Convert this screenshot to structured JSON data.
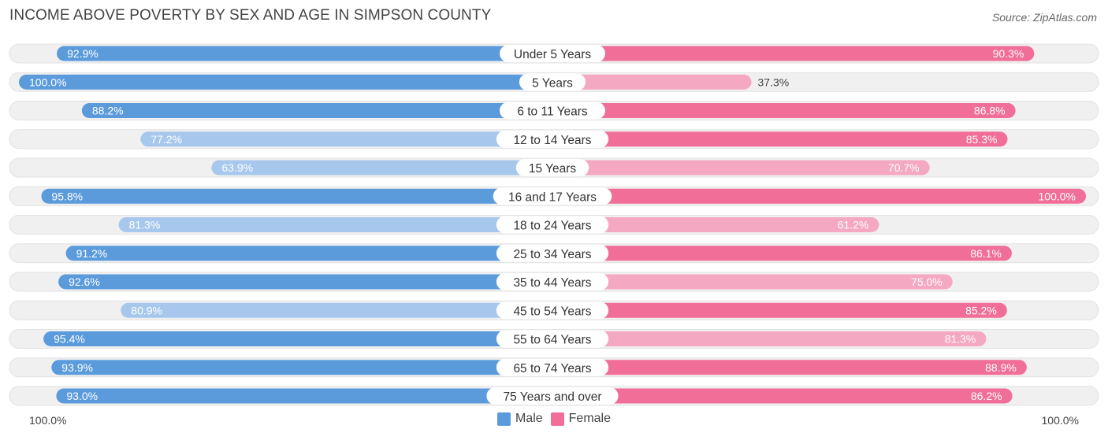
{
  "chart_data": {
    "type": "bar",
    "orientation": "horizontal-diverging",
    "title": "INCOME ABOVE POVERTY BY SEX AND AGE IN SIMPSON COUNTY",
    "source": "Source: ZipAtlas.com",
    "categories": [
      "Under 5 Years",
      "5 Years",
      "6 to 11 Years",
      "12 to 14 Years",
      "15 Years",
      "16 and 17 Years",
      "18 to 24 Years",
      "25 to 34 Years",
      "35 to 44 Years",
      "45 to 54 Years",
      "55 to 64 Years",
      "65 to 74 Years",
      "75 Years and over"
    ],
    "series": [
      {
        "name": "Male",
        "values": [
          92.9,
          100.0,
          88.2,
          77.2,
          63.9,
          95.8,
          81.3,
          91.2,
          92.6,
          80.9,
          95.4,
          93.9,
          93.0
        ],
        "labels": [
          "92.9%",
          "100.0%",
          "88.2%",
          "77.2%",
          "63.9%",
          "95.8%",
          "81.3%",
          "91.2%",
          "92.6%",
          "80.9%",
          "95.4%",
          "93.9%",
          "93.0%"
        ]
      },
      {
        "name": "Female",
        "values": [
          90.3,
          37.3,
          86.8,
          85.3,
          70.7,
          100.0,
          61.2,
          86.1,
          75.0,
          85.2,
          81.3,
          88.9,
          86.2
        ],
        "labels": [
          "90.3%",
          "37.3%",
          "86.8%",
          "85.3%",
          "70.7%",
          "100.0%",
          "61.2%",
          "86.1%",
          "75.0%",
          "85.2%",
          "81.3%",
          "88.9%",
          "86.2%"
        ]
      }
    ],
    "xlim": [
      0,
      100
    ],
    "axis_left_label": "100.0%",
    "axis_right_label": "100.0%",
    "legend_position": "bottom-center",
    "colors": {
      "male_strong": "#5b9bdc",
      "male_light": "#a7c8ec",
      "female_strong": "#f06e98",
      "female_light": "#f5a8c2",
      "track": "#f0f0f0"
    }
  },
  "legend": {
    "male_label": "Male",
    "female_label": "Female",
    "male_color": "#5b9bdc",
    "female_color": "#f06e98"
  }
}
